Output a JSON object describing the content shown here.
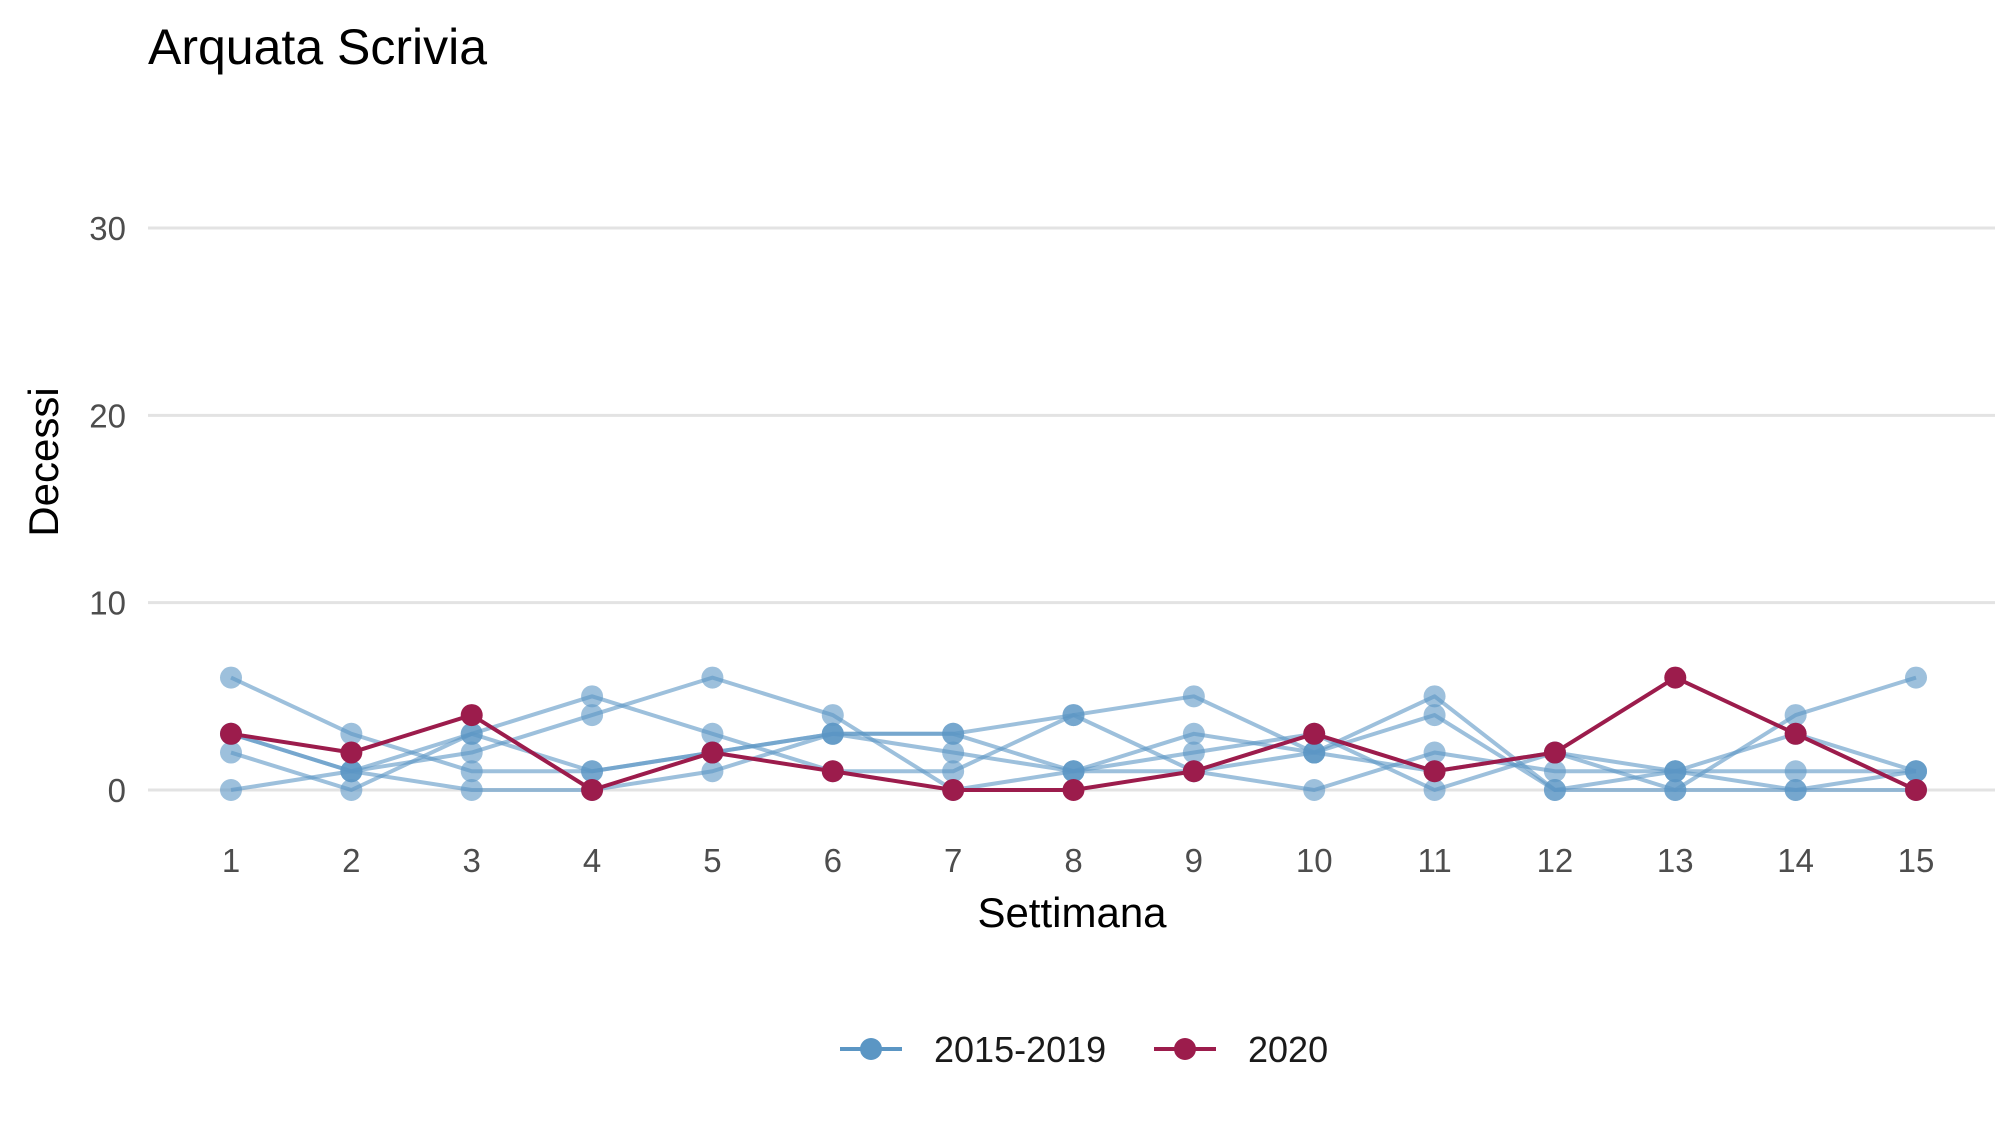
{
  "chart_data": {
    "type": "line",
    "title": "Arquata Scrivia",
    "xlabel": "Settimana",
    "ylabel": "Decessi",
    "x": [
      1,
      2,
      3,
      4,
      5,
      6,
      7,
      8,
      9,
      10,
      11,
      12,
      13,
      14,
      15
    ],
    "x_tick_labels": [
      "1",
      "2",
      "3",
      "4",
      "5",
      "6",
      "7",
      "8",
      "9",
      "10",
      "11",
      "12",
      "13",
      "14",
      "15"
    ],
    "ylim": [
      0,
      30
    ],
    "y_ticks": [
      0,
      10,
      20,
      30
    ],
    "y_tick_labels": [
      "0",
      "10",
      "20",
      "30"
    ],
    "grid": "horizontal major",
    "legend_position": "bottom",
    "legend": [
      {
        "label": "2015-2019",
        "color": "#5b96c4"
      },
      {
        "label": "2020",
        "color": "#9c1c4c"
      }
    ],
    "series": [
      {
        "group": "2015-2019",
        "values": [
          6,
          3,
          1,
          1,
          2,
          3,
          3,
          4,
          5,
          2,
          5,
          0,
          0,
          0,
          0
        ]
      },
      {
        "group": "2015-2019",
        "values": [
          2,
          0,
          3,
          5,
          3,
          1,
          1,
          4,
          1,
          0,
          2,
          1,
          1,
          3,
          1
        ]
      },
      {
        "group": "2015-2019",
        "values": [
          0,
          1,
          2,
          4,
          6,
          4,
          0,
          1,
          2,
          3,
          0,
          2,
          1,
          1,
          1
        ]
      },
      {
        "group": "2015-2019",
        "values": [
          3,
          1,
          0,
          0,
          1,
          3,
          2,
          1,
          1,
          2,
          4,
          0,
          1,
          0,
          1
        ]
      },
      {
        "group": "2015-2019",
        "values": [
          3,
          1,
          3,
          1,
          2,
          3,
          3,
          1,
          3,
          2,
          1,
          2,
          0,
          4,
          6
        ]
      },
      {
        "group": "2020",
        "values": [
          3,
          2,
          4,
          0,
          2,
          1,
          0,
          0,
          1,
          3,
          1,
          2,
          6,
          3,
          0
        ]
      }
    ],
    "colors": {
      "past": "#5b96c4",
      "current": "#9c1c4c",
      "grid": "#e3e3e3"
    }
  }
}
